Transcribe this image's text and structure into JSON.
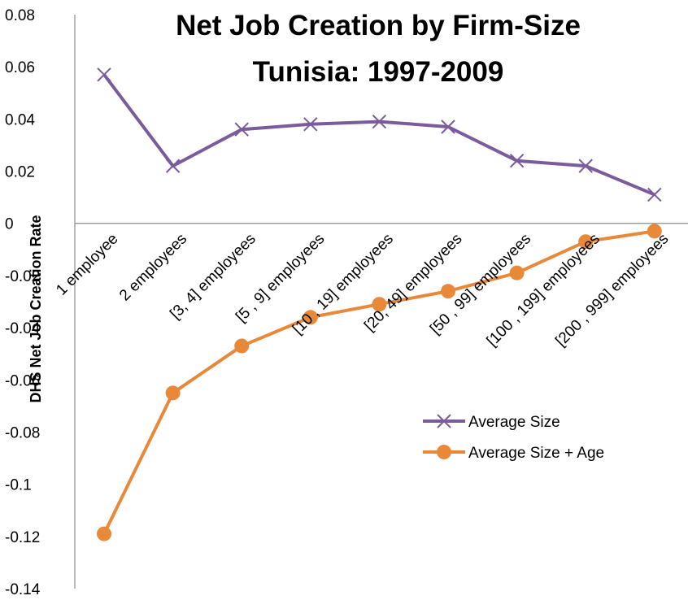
{
  "chart_data": {
    "type": "line",
    "title": [
      "Net Job Creation by Firm-Size",
      "Tunisia: 1997-2009"
    ],
    "ylabel": "DHS Net Job Creation Rate",
    "xlabel": "",
    "categories": [
      "1 employee",
      "2 employees",
      "[3, 4] employees",
      "[5 , 9] employees",
      "[10 , 19] employees",
      "[20, 49] employees",
      "[50 , 99] employees",
      "[100 , 199] employees",
      "[200 , 999] employees"
    ],
    "ylim": [
      -0.14,
      0.08
    ],
    "yticks": [
      "0.08",
      "0.06",
      "0.04",
      "0.02",
      "0",
      "-0.02",
      "-0.04",
      "-0.06",
      "-0.08",
      "-0.1",
      "-0.12",
      "-0.14"
    ],
    "grid": false,
    "legend_position": "right",
    "series": [
      {
        "name": "Average Size",
        "values": [
          0.057,
          0.022,
          0.036,
          0.038,
          0.039,
          0.037,
          0.024,
          0.022,
          0.011
        ],
        "color": "#7a5c9c",
        "marker": "x"
      },
      {
        "name": "Average Size + Age",
        "values": [
          -0.119,
          -0.065,
          -0.047,
          -0.036,
          -0.031,
          -0.026,
          -0.019,
          -0.007,
          -0.003
        ],
        "color": "#e8893a",
        "marker": "circle"
      }
    ]
  }
}
